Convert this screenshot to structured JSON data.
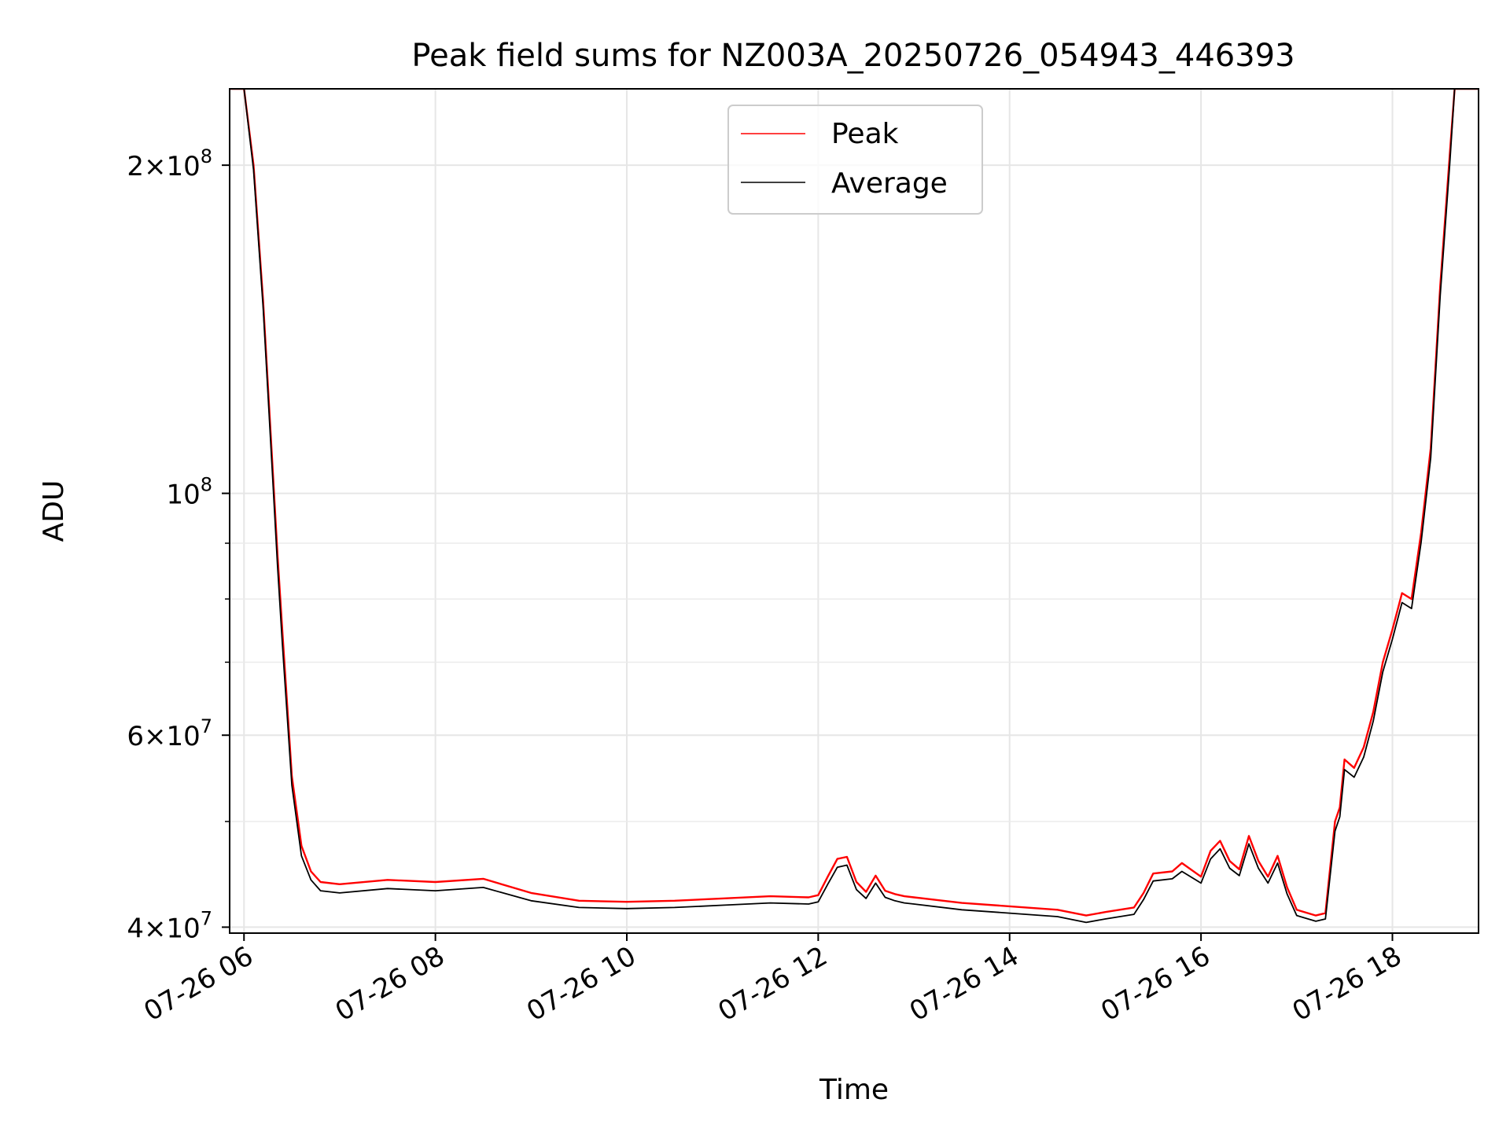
{
  "chart_data": {
    "type": "line",
    "title": "Peak field sums for NZ003A_20250726_054943_446393",
    "xlabel": "Time",
    "ylabel": "ADU",
    "x_unit": "hours (time of day, 2025-07-26)",
    "xlim": [
      5.85,
      18.9
    ],
    "ylim": [
      39500000,
      235000000
    ],
    "yscale": "log",
    "grid": true,
    "legend_position": "top-center",
    "x_ticks": [
      {
        "value": 6,
        "label": "07-26 06"
      },
      {
        "value": 8,
        "label": "07-26 08"
      },
      {
        "value": 10,
        "label": "07-26 10"
      },
      {
        "value": 12,
        "label": "07-26 12"
      },
      {
        "value": 14,
        "label": "07-26 14"
      },
      {
        "value": 16,
        "label": "07-26 16"
      },
      {
        "value": 18,
        "label": "07-26 18"
      }
    ],
    "y_major_ticks": [
      {
        "value": 40000000,
        "mantissa": "4",
        "exponent": "7"
      },
      {
        "value": 60000000,
        "mantissa": "6",
        "exponent": "7"
      },
      {
        "value": 100000000,
        "mantissa": "",
        "exponent": "8"
      },
      {
        "value": 200000000,
        "mantissa": "2",
        "exponent": "8"
      }
    ],
    "y_minor_ticks": [
      50000000,
      70000000,
      80000000,
      90000000
    ],
    "series": [
      {
        "name": "Peak",
        "color": "#ff0000",
        "x": [
          5.85,
          6.0,
          6.1,
          6.2,
          6.3,
          6.35,
          6.4,
          6.5,
          6.6,
          6.7,
          6.8,
          7.0,
          7.5,
          8.0,
          8.5,
          9.0,
          9.5,
          10.0,
          10.5,
          11.0,
          11.5,
          11.9,
          12.0,
          12.1,
          12.2,
          12.3,
          12.4,
          12.5,
          12.6,
          12.7,
          12.8,
          12.9,
          13.0,
          13.5,
          14.0,
          14.5,
          14.8,
          15.0,
          15.3,
          15.4,
          15.5,
          15.7,
          15.8,
          16.0,
          16.1,
          16.2,
          16.3,
          16.4,
          16.5,
          16.6,
          16.7,
          16.8,
          16.9,
          17.0,
          17.2,
          17.3,
          17.4,
          17.45,
          17.5,
          17.6,
          17.7,
          17.8,
          17.9,
          18.0,
          18.1,
          18.2,
          18.3,
          18.4,
          18.5,
          18.6,
          18.65,
          18.7,
          18.9
        ],
        "y": [
          235000000,
          235000000,
          200000000,
          150000000,
          105000000,
          88000000,
          75000000,
          55000000,
          47500000,
          45000000,
          44000000,
          43800000,
          44200000,
          44000000,
          44300000,
          43000000,
          42300000,
          42200000,
          42300000,
          42500000,
          42700000,
          42600000,
          42800000,
          44500000,
          46200000,
          46400000,
          44000000,
          43100000,
          44600000,
          43200000,
          42900000,
          42700000,
          42600000,
          42100000,
          41800000,
          41500000,
          41000000,
          41300000,
          41700000,
          43000000,
          44800000,
          45000000,
          45800000,
          44500000,
          47000000,
          48000000,
          46000000,
          45200000,
          48500000,
          46000000,
          44500000,
          46500000,
          43500000,
          41500000,
          41000000,
          41200000,
          50000000,
          51500000,
          57000000,
          56000000,
          58500000,
          63000000,
          70000000,
          75000000,
          81000000,
          80000000,
          92000000,
          110000000,
          155000000,
          205000000,
          235000000,
          235000000,
          235000000
        ]
      },
      {
        "name": "Average",
        "color": "#000000",
        "x": [
          5.85,
          6.0,
          6.1,
          6.2,
          6.3,
          6.35,
          6.4,
          6.5,
          6.6,
          6.7,
          6.8,
          7.0,
          7.5,
          8.0,
          8.5,
          9.0,
          9.5,
          10.0,
          10.5,
          11.0,
          11.5,
          11.9,
          12.0,
          12.1,
          12.2,
          12.3,
          12.4,
          12.5,
          12.6,
          12.7,
          12.8,
          12.9,
          13.0,
          13.5,
          14.0,
          14.5,
          14.8,
          15.0,
          15.3,
          15.4,
          15.5,
          15.7,
          15.8,
          16.0,
          16.1,
          16.2,
          16.3,
          16.4,
          16.5,
          16.6,
          16.7,
          16.8,
          16.9,
          17.0,
          17.2,
          17.3,
          17.4,
          17.45,
          17.5,
          17.6,
          17.7,
          17.8,
          17.9,
          18.0,
          18.1,
          18.2,
          18.3,
          18.4,
          18.5,
          18.6,
          18.65,
          18.7,
          18.9
        ],
        "y": [
          235000000,
          235000000,
          198000000,
          148000000,
          103000000,
          86000000,
          73000000,
          54000000,
          46500000,
          44200000,
          43200000,
          43000000,
          43400000,
          43200000,
          43500000,
          42300000,
          41700000,
          41600000,
          41700000,
          41900000,
          42100000,
          42000000,
          42200000,
          43800000,
          45400000,
          45600000,
          43300000,
          42500000,
          43900000,
          42600000,
          42300000,
          42100000,
          42000000,
          41500000,
          41200000,
          40900000,
          40400000,
          40700000,
          41100000,
          42400000,
          44100000,
          44300000,
          45000000,
          43900000,
          46200000,
          47200000,
          45300000,
          44600000,
          47700000,
          45300000,
          43900000,
          45800000,
          42900000,
          41000000,
          40500000,
          40700000,
          49000000,
          50500000,
          55800000,
          54900000,
          57300000,
          61800000,
          68600000,
          73500000,
          79400000,
          78400000,
          90200000,
          107800000,
          152000000,
          201000000,
          235000000,
          235000000,
          235000000
        ]
      }
    ]
  }
}
